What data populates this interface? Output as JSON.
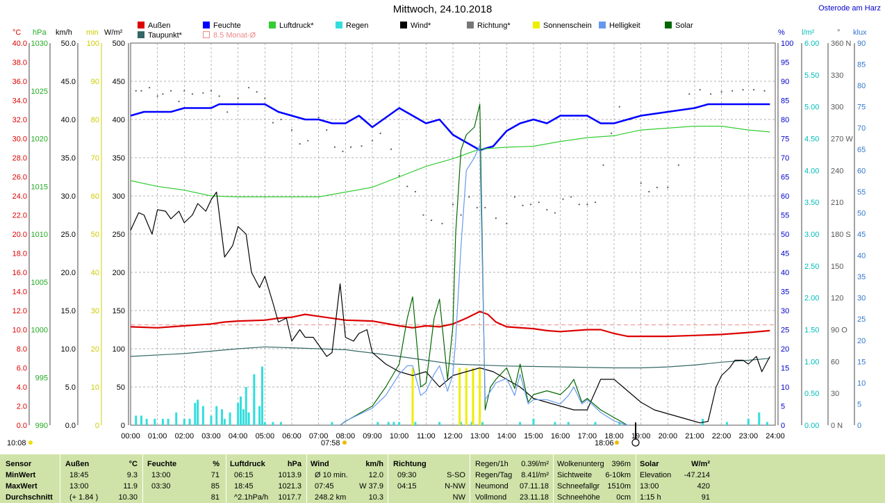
{
  "title": "Mittwoch, 24.10.2018",
  "location": "Osterode am Harz",
  "legend": [
    {
      "label": "Außen",
      "color": "#dd0000"
    },
    {
      "label": "Feuchte",
      "color": "#0000ff"
    },
    {
      "label": "Luftdruck*",
      "color": "#33cc33"
    },
    {
      "label": "Regen",
      "color": "#33dddd"
    },
    {
      "label": "Wind*",
      "color": "#000000"
    },
    {
      "label": "Richtung*",
      "color": "#777777"
    },
    {
      "label": "Sonnenschein",
      "color": "#eeee00"
    },
    {
      "label": "Helligkeit",
      "color": "#6699ee"
    },
    {
      "label": "Solar",
      "color": "#006600"
    },
    {
      "label": "Taupunkt*",
      "color": "#336666"
    },
    {
      "label": "8.5 Monat-Ø",
      "color": "#ee8888"
    }
  ],
  "axes_units": {
    "temp": "°C",
    "press": "hPa",
    "wind": "km/h",
    "sun": "min",
    "solar": "W/m²",
    "hum": "%",
    "rain": "l/m²",
    "dir": "°",
    "lux": "klux"
  },
  "x_ticks": [
    "00:00",
    "01:00",
    "02:00",
    "03:00",
    "04:00",
    "05:00",
    "06:00",
    "07:00",
    "08:00",
    "09:00",
    "10:00",
    "11:00",
    "12:00",
    "13:00",
    "14:00",
    "15:00",
    "16:00",
    "17:00",
    "18:00",
    "19:00",
    "20:00",
    "21:00",
    "22:00",
    "23:00",
    "24:00"
  ],
  "marks": {
    "sunrise": "07:58",
    "sunset": "18:06",
    "moonrise": "10:08"
  },
  "chart_data": {
    "type": "line",
    "title": "Mittwoch, 24.10.2018",
    "x_unit": "hour",
    "axes": {
      "temp_C": {
        "ticks": [
          "0.0",
          "2.0",
          "4.0",
          "6.0",
          "8.0",
          "10.0",
          "12.0",
          "14.0",
          "16.0",
          "18.0",
          "20.0",
          "22.0",
          "24.0",
          "26.0",
          "28.0",
          "30.0",
          "32.0",
          "34.0",
          "36.0",
          "38.0",
          "40.0"
        ],
        "range": [
          0,
          40
        ]
      },
      "pressure_hPa": {
        "ticks": [
          "990",
          "995",
          "1000",
          "1005",
          "1010",
          "1015",
          "1020",
          "1025",
          "1030"
        ],
        "range": [
          990,
          1030
        ]
      },
      "wind_kmh": {
        "ticks": [
          "0.0",
          "5.0",
          "10.0",
          "15.0",
          "20.0",
          "25.0",
          "30.0",
          "35.0",
          "40.0",
          "45.0",
          "50.0"
        ],
        "range": [
          0,
          50
        ]
      },
      "sun_min": {
        "ticks": [
          "0",
          "10",
          "20",
          "30",
          "40",
          "50",
          "60",
          "70",
          "80",
          "90",
          "100"
        ],
        "range": [
          0,
          100
        ]
      },
      "solar_Wm2": {
        "ticks": [
          "0",
          "50",
          "100",
          "150",
          "200",
          "250",
          "300",
          "350",
          "400",
          "450",
          "500"
        ],
        "range": [
          0,
          500
        ]
      },
      "humidity_pct": {
        "ticks": [
          "0",
          "5",
          "10",
          "15",
          "20",
          "25",
          "30",
          "35",
          "40",
          "45",
          "50",
          "55",
          "60",
          "65",
          "70",
          "75",
          "80",
          "85",
          "90",
          "95",
          "100"
        ],
        "range": [
          0,
          100
        ]
      },
      "rain_lm2": {
        "ticks": [
          "0.00",
          "0.50",
          "1.00",
          "1.50",
          "2.00",
          "2.50",
          "3.00",
          "3.50",
          "4.00",
          "4.50",
          "5.00",
          "5.50",
          "6.00"
        ],
        "range": [
          0,
          6
        ]
      },
      "direction_deg": {
        "ticks": [
          "0 N",
          "30",
          "60",
          "90 O",
          "120",
          "150",
          "180 S",
          "210",
          "240",
          "270 W",
          "300",
          "330",
          "360 N"
        ],
        "range": [
          0,
          360
        ]
      },
      "light_klux": {
        "ticks": [
          "0",
          "5",
          "10",
          "15",
          "20",
          "25",
          "30",
          "35",
          "40",
          "45",
          "50",
          "55",
          "60",
          "65",
          "70",
          "75",
          "80",
          "85",
          "90"
        ],
        "range": [
          0,
          90
        ]
      }
    },
    "series": [
      {
        "name": "Außen",
        "color": "#dd0000",
        "axis": "temp",
        "x": [
          0,
          1,
          2,
          3,
          3.5,
          4,
          5,
          5.5,
          6,
          6.5,
          7,
          8,
          9,
          10,
          10.5,
          11,
          11.5,
          12,
          12.5,
          13,
          13.3,
          13.6,
          14,
          15,
          15.5,
          16,
          17,
          17.5,
          18,
          18.5,
          19,
          20,
          21,
          22,
          23,
          23.8
        ],
        "y": [
          10.3,
          10.2,
          10.4,
          10.6,
          10.8,
          10.9,
          11.0,
          11.2,
          11.3,
          11.6,
          11.4,
          11.0,
          10.9,
          10.4,
          10.2,
          10.4,
          10.3,
          10.6,
          11.2,
          11.9,
          11.6,
          10.8,
          10.3,
          10.1,
          9.9,
          9.8,
          10.0,
          10.0,
          9.6,
          9.3,
          9.3,
          9.3,
          9.4,
          9.5,
          9.7,
          9.9
        ]
      },
      {
        "name": "Feuchte",
        "color": "#0000ff",
        "axis": "hum",
        "x": [
          0,
          0.5,
          1,
          1.5,
          2,
          3,
          3.3,
          4,
          5,
          5.5,
          6,
          6.5,
          7,
          7.5,
          8,
          8.5,
          9,
          10,
          10.5,
          11,
          11.5,
          12,
          12.5,
          13,
          13.5,
          14,
          14.5,
          15,
          15.5,
          16,
          17,
          17.5,
          18,
          18.5,
          19,
          20,
          21,
          21.5,
          22,
          23,
          23.8
        ],
        "y": [
          81,
          82,
          82,
          82,
          83,
          83,
          84,
          84,
          84,
          82,
          81,
          80,
          80,
          79,
          79,
          81,
          78,
          83,
          81,
          79,
          80,
          76,
          74,
          72,
          73,
          77,
          79,
          80,
          79,
          81,
          81,
          79,
          79,
          80,
          81,
          82,
          83,
          84,
          84,
          84,
          84
        ]
      },
      {
        "name": "Luftdruck*",
        "color": "#33cc33",
        "axis": "press",
        "x": [
          0,
          1,
          2,
          3,
          4,
          5,
          6,
          7,
          8,
          9,
          10,
          11,
          12,
          12.5,
          13,
          14,
          15,
          16,
          17,
          18,
          18.5,
          19,
          20,
          21,
          22,
          23,
          23.8
        ],
        "y": [
          1015.6,
          1015.0,
          1014.6,
          1014.0,
          1013.9,
          1013.9,
          1013.9,
          1013.9,
          1014.4,
          1014.9,
          1016.0,
          1017.1,
          1017.9,
          1018.4,
          1018.9,
          1019.1,
          1019.2,
          1019.7,
          1020.1,
          1020.3,
          1020.6,
          1020.9,
          1021.1,
          1021.3,
          1021.3,
          1020.9,
          1020.7
        ]
      },
      {
        "name": "Taupunkt*",
        "color": "#336666",
        "axis": "temp",
        "x": [
          0,
          2,
          4,
          5,
          6,
          8,
          10,
          12,
          14,
          16,
          18,
          19,
          20,
          21,
          22,
          23,
          23.8
        ],
        "y": [
          7.2,
          7.5,
          8.0,
          8.2,
          8.1,
          7.9,
          7.2,
          6.4,
          6.2,
          6.1,
          6.0,
          6.0,
          6.1,
          6.3,
          6.6,
          6.8,
          7.0
        ]
      },
      {
        "name": "Wind*",
        "color": "#000000",
        "axis": "wind",
        "x": [
          0,
          0.3,
          0.5,
          0.8,
          1,
          1.3,
          1.5,
          1.8,
          2,
          2.3,
          2.5,
          2.8,
          3,
          3.2,
          3.5,
          3.8,
          4,
          4.3,
          4.5,
          4.8,
          5,
          5.3,
          5.5,
          5.8,
          6,
          6.3,
          6.5,
          6.8,
          7,
          7.3,
          7.5,
          7.8,
          8,
          8.3,
          8.5,
          8.8,
          9,
          9.5,
          10,
          10.5,
          11,
          11.5,
          12,
          12.5,
          13,
          13.5,
          14,
          14.5,
          15,
          15.5,
          16,
          16.5,
          17,
          17.5,
          18,
          18.5,
          19,
          19.5,
          20,
          20.5,
          21,
          21.2,
          21.5,
          21.8,
          22,
          22.3,
          22.5,
          22.8,
          23,
          23.3,
          23.5,
          23.8
        ],
        "y": [
          25.5,
          27.8,
          27.5,
          25.0,
          28.2,
          28.0,
          27.0,
          28.0,
          26.5,
          27.5,
          29.0,
          28.0,
          29.5,
          30.5,
          22.0,
          23.5,
          26.0,
          25.0,
          20.0,
          18.0,
          19.5,
          16.0,
          13.5,
          14.0,
          11.0,
          12.5,
          11.5,
          11.5,
          10.5,
          9.0,
          9.5,
          18.5,
          11.5,
          11.0,
          12.0,
          12.5,
          9.5,
          8.0,
          7.0,
          6.5,
          7.0,
          5.0,
          6.5,
          7.0,
          7.5,
          7.0,
          6.0,
          5.0,
          3.5,
          3.0,
          2.5,
          2.0,
          2.0,
          6.0,
          6.0,
          4.5,
          3.0,
          2.0,
          1.5,
          1.0,
          0.5,
          0.3,
          0.5,
          5.0,
          6.5,
          7.5,
          8.5,
          8.5,
          8.0,
          9.0,
          7.0,
          9.0
        ]
      },
      {
        "name": "Solar",
        "color": "#006600",
        "axis": "solar",
        "x": [
          7.8,
          8,
          8.5,
          9,
          9.5,
          10,
          10.3,
          10.5,
          10.8,
          11,
          11.3,
          11.5,
          11.8,
          12,
          12.1,
          12.3,
          12.5,
          12.8,
          13,
          13.2,
          13.4,
          13.6,
          14,
          14.3,
          14.5,
          14.8,
          15,
          15.5,
          16,
          16.3,
          16.5,
          16.8,
          17,
          17.5,
          18,
          18.5
        ],
        "y": [
          0,
          5,
          15,
          25,
          50,
          80,
          140,
          168,
          50,
          55,
          140,
          165,
          60,
          130,
          250,
          360,
          380,
          390,
          420,
          20,
          50,
          60,
          75,
          48,
          80,
          30,
          40,
          45,
          40,
          50,
          60,
          30,
          35,
          20,
          10,
          0
        ]
      },
      {
        "name": "Helligkeit",
        "color": "#6699ee",
        "axis": "lux",
        "x": [
          7.8,
          8,
          8.5,
          9,
          9.5,
          10,
          10.3,
          10.5,
          10.8,
          11,
          11.3,
          11.5,
          11.8,
          12,
          12.1,
          12.3,
          12.5,
          12.8,
          13,
          13.2,
          13.4,
          13.6,
          14,
          14.3,
          14.5,
          14.8,
          15,
          15.5,
          16,
          16.3,
          16.5,
          16.8,
          17,
          17.5,
          18,
          18.5
        ],
        "y": [
          0,
          1,
          2.5,
          4,
          7,
          12,
          14,
          14,
          7,
          8,
          12,
          14,
          8,
          12,
          20,
          42,
          60,
          63,
          66,
          6,
          8,
          10,
          11,
          7,
          12,
          5,
          6,
          6,
          5,
          7,
          9,
          5,
          6,
          3,
          1,
          0
        ]
      }
    ],
    "wind_direction": {
      "color": "#555555",
      "x": [
        0.2,
        0.4,
        0.7,
        1,
        1.2,
        1.5,
        1.8,
        2,
        2.3,
        2.7,
        3,
        3.3,
        3.6,
        4,
        4.4,
        4.7,
        5,
        5.3,
        5.6,
        6,
        6.3,
        6.6,
        7,
        7.3,
        7.6,
        7.9,
        8.2,
        8.6,
        9,
        9.3,
        9.7,
        10,
        10.3,
        10.6,
        10.9,
        11.2,
        11.6,
        12,
        12.3,
        12.6,
        12.9,
        13.2,
        13.6,
        14,
        14.3,
        14.6,
        14.9,
        15.2,
        15.5,
        15.8,
        16.1,
        16.4,
        16.7,
        17,
        17.3,
        17.6,
        17.9,
        18.2,
        18.6,
        19,
        19.3,
        19.6,
        20,
        20.4,
        20.8,
        21.2,
        21.6,
        22,
        22.4,
        22.8,
        23.2,
        23.6
      ],
      "y": [
        315,
        315,
        318,
        310,
        312,
        315,
        305,
        315,
        312,
        313,
        315,
        310,
        295,
        308,
        318,
        314,
        308,
        285,
        288,
        278,
        265,
        268,
        290,
        278,
        262,
        258,
        262,
        263,
        268,
        275,
        260,
        235,
        225,
        220,
        198,
        193,
        190,
        208,
        198,
        215,
        205,
        205,
        195,
        190,
        215,
        207,
        208,
        210,
        203,
        200,
        213,
        215,
        208,
        208,
        210,
        245,
        275,
        300,
        288,
        228,
        220,
        224,
        224,
        245,
        312,
        316,
        312,
        314,
        315,
        316,
        316,
        315
      ]
    },
    "rain_bars": {
      "color": "#33dddd",
      "x": [
        0.2,
        0.4,
        0.6,
        0.9,
        1.2,
        1.4,
        1.7,
        2,
        2.2,
        2.5,
        2.7,
        3,
        3.2,
        3.5,
        3.7,
        4,
        4.2,
        4.4,
        4.6,
        4.8,
        5,
        5.3,
        5.6,
        7.5,
        9.2,
        9.6,
        9.8,
        10,
        10.6,
        11.5,
        12.3,
        12.7,
        13.1,
        14.5,
        15,
        15.8,
        16.3,
        17.3,
        18.2,
        21.3,
        22.2,
        23,
        23.4,
        23.7
      ],
      "y": [
        0.15,
        0.15,
        0.1,
        0.1,
        0.1,
        0.1,
        0.2,
        0.1,
        0.1,
        0.4,
        0.3,
        0.15,
        0.3,
        0.1,
        0.2,
        0.35,
        0.25,
        0.2,
        0.4,
        0.3,
        0.05,
        0.05,
        0.05,
        0.05,
        0.05,
        0.05,
        0.05,
        0.05,
        0.05,
        0.05,
        0.05,
        0.05,
        0.05,
        0.05,
        0.1,
        0.05,
        0.05,
        0.05,
        0.05,
        0.1,
        0.05,
        0.1,
        0.2,
        0.05
      ],
      "y_right_axis": true
    },
    "rain_bars_early": {
      "x": [
        2.4,
        3.4,
        4.1,
        4.3,
        4.6,
        4.9
      ],
      "y": [
        0.35,
        0.25,
        0.45,
        0.6,
        0.8,
        0.92
      ]
    },
    "sunshine_bars": {
      "color": "#eeee00",
      "axis": "sun",
      "x": [
        10.5,
        12.25,
        12.5,
        12.75,
        13
      ],
      "y": [
        15,
        15,
        15,
        15,
        15
      ]
    },
    "monthly_avg_temp": 10.5
  },
  "table": {
    "sensor": {
      "h": "Sensor",
      "rows": [
        "MinWert",
        "MaxWert",
        "Durchschnitt"
      ]
    },
    "aussen": {
      "h": "Außen",
      "unit": "°C",
      "rows": [
        [
          "18:45",
          "9.3"
        ],
        [
          "13:00",
          "11.9"
        ],
        [
          "(+ 1.84 )",
          "10.30"
        ]
      ]
    },
    "feuchte": {
      "h": "Feuchte",
      "unit": "%",
      "rows": [
        [
          "13:00",
          "71"
        ],
        [
          "03:30",
          "85"
        ],
        [
          "",
          "81"
        ]
      ]
    },
    "luftdruck": {
      "h": "Luftdruck",
      "unit": "hPa",
      "rows": [
        [
          "06:15",
          "1013.9"
        ],
        [
          "18:45",
          "1021.3"
        ],
        [
          "^2.1hPa/h",
          "1017.7"
        ]
      ]
    },
    "wind": {
      "h": "Wind",
      "unit": "km/h",
      "rows": [
        [
          "Ø 10 min.",
          "12.0"
        ],
        [
          "07:45",
          "W 37.9"
        ],
        [
          "248.2 km",
          "10.3"
        ]
      ]
    },
    "richtung": {
      "h": "Richtung",
      "rows": [
        [
          "09:30",
          "S-SO"
        ],
        [
          "04:15",
          "N-NW"
        ],
        [
          "",
          "NW"
        ]
      ]
    },
    "regen": {
      "rows": [
        [
          "Regen/1h",
          "0.39l/m²"
        ],
        [
          "Regen/Tag",
          "8.41l/m²"
        ],
        [
          "Neumond",
          "07.11.18"
        ],
        [
          "Vollmond",
          "23.11.18"
        ]
      ]
    },
    "wolken": {
      "rows": [
        [
          "Wolkenunterg",
          "396m"
        ],
        [
          "Sichtweite",
          "6-10km"
        ],
        [
          "Schneefallgr",
          "1510m"
        ],
        [
          "Schneehöhe",
          "0cm"
        ]
      ]
    },
    "solar": {
      "h": "Solar",
      "unit": "W/m²",
      "rows": [
        [
          "Elevation",
          "-47.214"
        ],
        [
          "13:00",
          "420"
        ],
        [
          "1:15 h",
          "91"
        ]
      ]
    }
  }
}
